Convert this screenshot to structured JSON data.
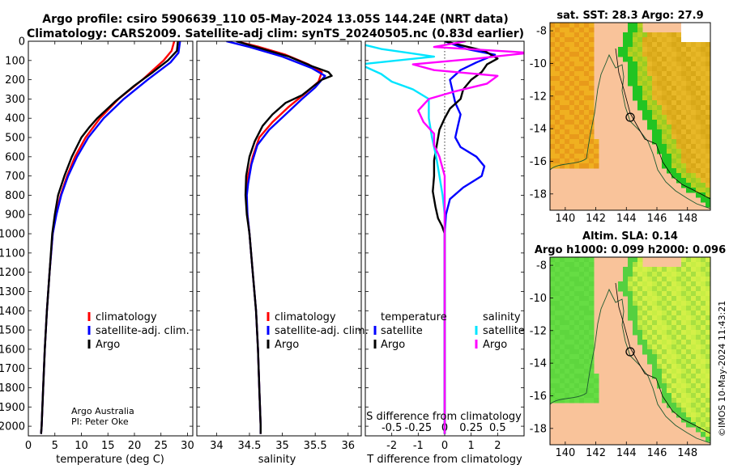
{
  "figure": {
    "title_line1": "Argo profile: csiro 5906639_110 05-May-2024 13.05S 144.24E (NRT data)",
    "title_line2": "Climatology: CARS2009. Satellite-adj clim: synTS_20240505.nc (0.83d earlier)",
    "credit_line1": "Argo Australia",
    "credit_line2": "PI: Peter Oke",
    "watermark": "©IMOS 10-May-2024 11:43:21",
    "colors": {
      "climatology": "#ff0000",
      "satellite": "#0000ff",
      "argo": "#000000",
      "sat_salinity": "#00e5ff",
      "argo_salinity": "#ff00ff",
      "land": "#f9c39a"
    }
  },
  "chart_data": [
    {
      "type": "line",
      "id": "temperature",
      "xlabel": "temperature (deg C)",
      "xlim": [
        0,
        31
      ],
      "xticks": [
        "0",
        "5",
        "10",
        "15",
        "20",
        "25",
        "30"
      ],
      "ylim": [
        0,
        2050
      ],
      "yticks": [
        "0",
        "100",
        "200",
        "300",
        "400",
        "500",
        "600",
        "700",
        "800",
        "900",
        "1000",
        "1100",
        "1200",
        "1300",
        "1400",
        "1500",
        "1600",
        "1700",
        "1800",
        "1900",
        "2000"
      ],
      "legend": [
        "climatology",
        "satellite-adj. clim.",
        "Argo"
      ],
      "series": [
        {
          "name": "climatology",
          "points": [
            [
              27.5,
              0
            ],
            [
              27,
              50
            ],
            [
              25.5,
              100
            ],
            [
              21.5,
              200
            ],
            [
              17,
              300
            ],
            [
              13.5,
              400
            ],
            [
              10.8,
              500
            ],
            [
              8.8,
              600
            ],
            [
              7.3,
              700
            ],
            [
              6.1,
              800
            ],
            [
              5.2,
              900
            ],
            [
              4.6,
              1000
            ],
            [
              4.0,
              1200
            ],
            [
              3.5,
              1400
            ],
            [
              3.1,
              1600
            ],
            [
              2.8,
              1800
            ],
            [
              2.5,
              2000
            ],
            [
              2.4,
              2040
            ]
          ]
        },
        {
          "name": "satellite-adj. clim.",
          "points": [
            [
              28.6,
              0
            ],
            [
              28.3,
              60
            ],
            [
              26.8,
              110
            ],
            [
              22.5,
              200
            ],
            [
              18,
              300
            ],
            [
              14.2,
              400
            ],
            [
              11.3,
              500
            ],
            [
              9.2,
              600
            ],
            [
              7.5,
              700
            ],
            [
              6.2,
              800
            ],
            [
              5.3,
              900
            ],
            [
              4.6,
              1000
            ],
            [
              4.0,
              1200
            ],
            [
              3.5,
              1400
            ],
            [
              3.1,
              1600
            ],
            [
              2.8,
              1800
            ],
            [
              2.5,
              2000
            ],
            [
              2.4,
              2040
            ]
          ]
        },
        {
          "name": "Argo",
          "points": [
            [
              28.2,
              0
            ],
            [
              28,
              50
            ],
            [
              26.3,
              100
            ],
            [
              23.5,
              160
            ],
            [
              20,
              230
            ],
            [
              16.5,
              310
            ],
            [
              13,
              400
            ],
            [
              11.4,
              450
            ],
            [
              10,
              500
            ],
            [
              8.2,
              600
            ],
            [
              6.8,
              700
            ],
            [
              5.6,
              800
            ],
            [
              5.0,
              900
            ],
            [
              4.5,
              1000
            ],
            [
              4.0,
              1200
            ],
            [
              3.5,
              1400
            ],
            [
              3.1,
              1600
            ],
            [
              2.8,
              1800
            ],
            [
              2.5,
              2000
            ],
            [
              2.4,
              2040
            ]
          ]
        }
      ]
    },
    {
      "type": "line",
      "id": "salinity",
      "xlabel": "salinity",
      "xlim": [
        33.7,
        36.2
      ],
      "xticks": [
        "34",
        "34.5",
        "35",
        "35.5",
        "36"
      ],
      "ylim": [
        0,
        2050
      ],
      "legend": [
        "climatology",
        "satellite-adj. clim.",
        "Argo"
      ],
      "series": [
        {
          "name": "climatology",
          "points": [
            [
              34.3,
              0
            ],
            [
              34.65,
              30
            ],
            [
              35.05,
              70
            ],
            [
              35.4,
              120
            ],
            [
              35.6,
              160
            ],
            [
              35.55,
              210
            ],
            [
              35.35,
              270
            ],
            [
              35.1,
              340
            ],
            [
              34.85,
              420
            ],
            [
              34.65,
              500
            ],
            [
              34.55,
              600
            ],
            [
              34.48,
              700
            ],
            [
              34.45,
              800
            ],
            [
              34.47,
              900
            ],
            [
              34.5,
              1000
            ],
            [
              34.55,
              1200
            ],
            [
              34.6,
              1400
            ],
            [
              34.63,
              1600
            ],
            [
              34.65,
              1800
            ],
            [
              34.67,
              2000
            ],
            [
              34.67,
              2040
            ]
          ]
        },
        {
          "name": "satellite-adj. clim.",
          "points": [
            [
              34.15,
              0
            ],
            [
              34.5,
              30
            ],
            [
              35,
              80
            ],
            [
              35.45,
              140
            ],
            [
              35.65,
              180
            ],
            [
              35.5,
              240
            ],
            [
              35.3,
              300
            ],
            [
              35.05,
              380
            ],
            [
              34.8,
              460
            ],
            [
              34.62,
              540
            ],
            [
              34.53,
              640
            ],
            [
              34.48,
              740
            ],
            [
              34.46,
              800
            ],
            [
              34.47,
              900
            ],
            [
              34.5,
              1000
            ],
            [
              34.55,
              1200
            ],
            [
              34.6,
              1400
            ],
            [
              34.63,
              1600
            ],
            [
              34.65,
              1800
            ],
            [
              34.67,
              2000
            ],
            [
              34.67,
              2040
            ]
          ]
        },
        {
          "name": "Argo",
          "points": [
            [
              34.3,
              0
            ],
            [
              34.6,
              30
            ],
            [
              35.1,
              80
            ],
            [
              35.45,
              130
            ],
            [
              35.7,
              160
            ],
            [
              35.75,
              180
            ],
            [
              35.6,
              200
            ],
            [
              35.45,
              240
            ],
            [
              35.3,
              280
            ],
            [
              35.05,
              320
            ],
            [
              34.85,
              380
            ],
            [
              34.7,
              440
            ],
            [
              34.58,
              520
            ],
            [
              34.5,
              600
            ],
            [
              34.45,
              700
            ],
            [
              34.44,
              800
            ],
            [
              34.46,
              900
            ],
            [
              34.5,
              1000
            ],
            [
              34.55,
              1200
            ],
            [
              34.6,
              1400
            ],
            [
              34.63,
              1600
            ],
            [
              34.65,
              1800
            ],
            [
              34.67,
              2000
            ],
            [
              34.67,
              2040
            ]
          ]
        }
      ]
    },
    {
      "type": "line",
      "id": "difference",
      "xlabel": "T difference from climatology",
      "xlabel2": "S difference from climatology",
      "xlim": [
        -3,
        3
      ],
      "xticks": [
        "-2",
        "-1",
        "0",
        "1",
        "2"
      ],
      "sticks": [
        "-0.5",
        "-0.25",
        "0",
        "0.25",
        "0.5"
      ],
      "ylim": [
        0,
        2050
      ],
      "legend_headers": [
        "temperature",
        "salinity"
      ],
      "legend": [
        "satellite",
        "Argo",
        "satellite",
        "Argo"
      ],
      "series": [
        {
          "name": "temperature satellite",
          "points": [
            [
              0,
              0
            ],
            [
              0.8,
              40
            ],
            [
              1.9,
              70
            ],
            [
              1.2,
              110
            ],
            [
              0.6,
              150
            ],
            [
              0.2,
              200
            ],
            [
              0.3,
              260
            ],
            [
              0.4,
              320
            ],
            [
              0.6,
              380
            ],
            [
              0.5,
              440
            ],
            [
              0.4,
              500
            ],
            [
              0.6,
              550
            ],
            [
              1.2,
              600
            ],
            [
              1.5,
              650
            ],
            [
              1.4,
              700
            ],
            [
              0.7,
              760
            ],
            [
              0.2,
              820
            ],
            [
              0.05,
              900
            ],
            [
              0,
              1000
            ],
            [
              0,
              2040
            ]
          ]
        },
        {
          "name": "temperature Argo",
          "points": [
            [
              0,
              0
            ],
            [
              1.5,
              50
            ],
            [
              2.0,
              90
            ],
            [
              1.6,
              120
            ],
            [
              1.4,
              160
            ],
            [
              1.0,
              200
            ],
            [
              0.7,
              250
            ],
            [
              0.6,
              300
            ],
            [
              0.2,
              350
            ],
            [
              0,
              400
            ],
            [
              -0.2,
              460
            ],
            [
              -0.3,
              540
            ],
            [
              -0.4,
              620
            ],
            [
              -0.4,
              700
            ],
            [
              -0.45,
              780
            ],
            [
              -0.35,
              860
            ],
            [
              -0.25,
              920
            ],
            [
              -0.1,
              960
            ],
            [
              0,
              1000
            ],
            [
              0,
              2040
            ]
          ]
        },
        {
          "name": "salinity satellite",
          "points": [
            [
              -0.9,
              0
            ],
            [
              -0.6,
              40
            ],
            [
              -0.1,
              80
            ],
            [
              -0.8,
              120
            ],
            [
              -0.6,
              170
            ],
            [
              -0.5,
              210
            ],
            [
              -0.3,
              250
            ],
            [
              -0.15,
              300
            ],
            [
              -0.15,
              400
            ],
            [
              -0.12,
              500
            ],
            [
              -0.08,
              600
            ],
            [
              -0.05,
              700
            ],
            [
              -0.02,
              800
            ],
            [
              0,
              900
            ],
            [
              0,
              2040
            ]
          ]
        },
        {
          "name": "salinity Argo",
          "points": [
            [
              0.2,
              0
            ],
            [
              -0.1,
              30
            ],
            [
              0.8,
              60
            ],
            [
              0.3,
              90
            ],
            [
              -0.3,
              120
            ],
            [
              -0.1,
              150
            ],
            [
              0.5,
              180
            ],
            [
              0.4,
              220
            ],
            [
              0.1,
              260
            ],
            [
              -0.15,
              300
            ],
            [
              -0.25,
              360
            ],
            [
              -0.2,
              420
            ],
            [
              -0.1,
              480
            ],
            [
              -0.1,
              540
            ],
            [
              -0.05,
              600
            ],
            [
              0,
              700
            ],
            [
              0,
              2040
            ]
          ]
        }
      ]
    },
    {
      "type": "heatmap",
      "id": "sst-map",
      "title": "sat. SST: 28.3 Argo: 27.9",
      "xticks": [
        "140",
        "142",
        "144",
        "146",
        "148"
      ],
      "yticks": [
        "-8",
        "-10",
        "-12",
        "-14",
        "-16",
        "-18"
      ],
      "xlim": [
        139,
        149.5
      ],
      "ylim": [
        -19,
        -7.5
      ],
      "argo_position": [
        144.24,
        -13.05
      ]
    },
    {
      "type": "heatmap",
      "id": "sla-map",
      "title_line1": "Altim. SLA: 0.14",
      "title_line2": "Argo h1000: 0.099 h2000: 0.096",
      "xticks": [
        "140",
        "142",
        "144",
        "146",
        "148"
      ],
      "yticks": [
        "-8",
        "-10",
        "-12",
        "-14",
        "-16",
        "-18"
      ],
      "xlim": [
        139,
        149.5
      ],
      "ylim": [
        -19,
        -7.5
      ],
      "argo_position": [
        144.24,
        -13.05
      ]
    }
  ]
}
